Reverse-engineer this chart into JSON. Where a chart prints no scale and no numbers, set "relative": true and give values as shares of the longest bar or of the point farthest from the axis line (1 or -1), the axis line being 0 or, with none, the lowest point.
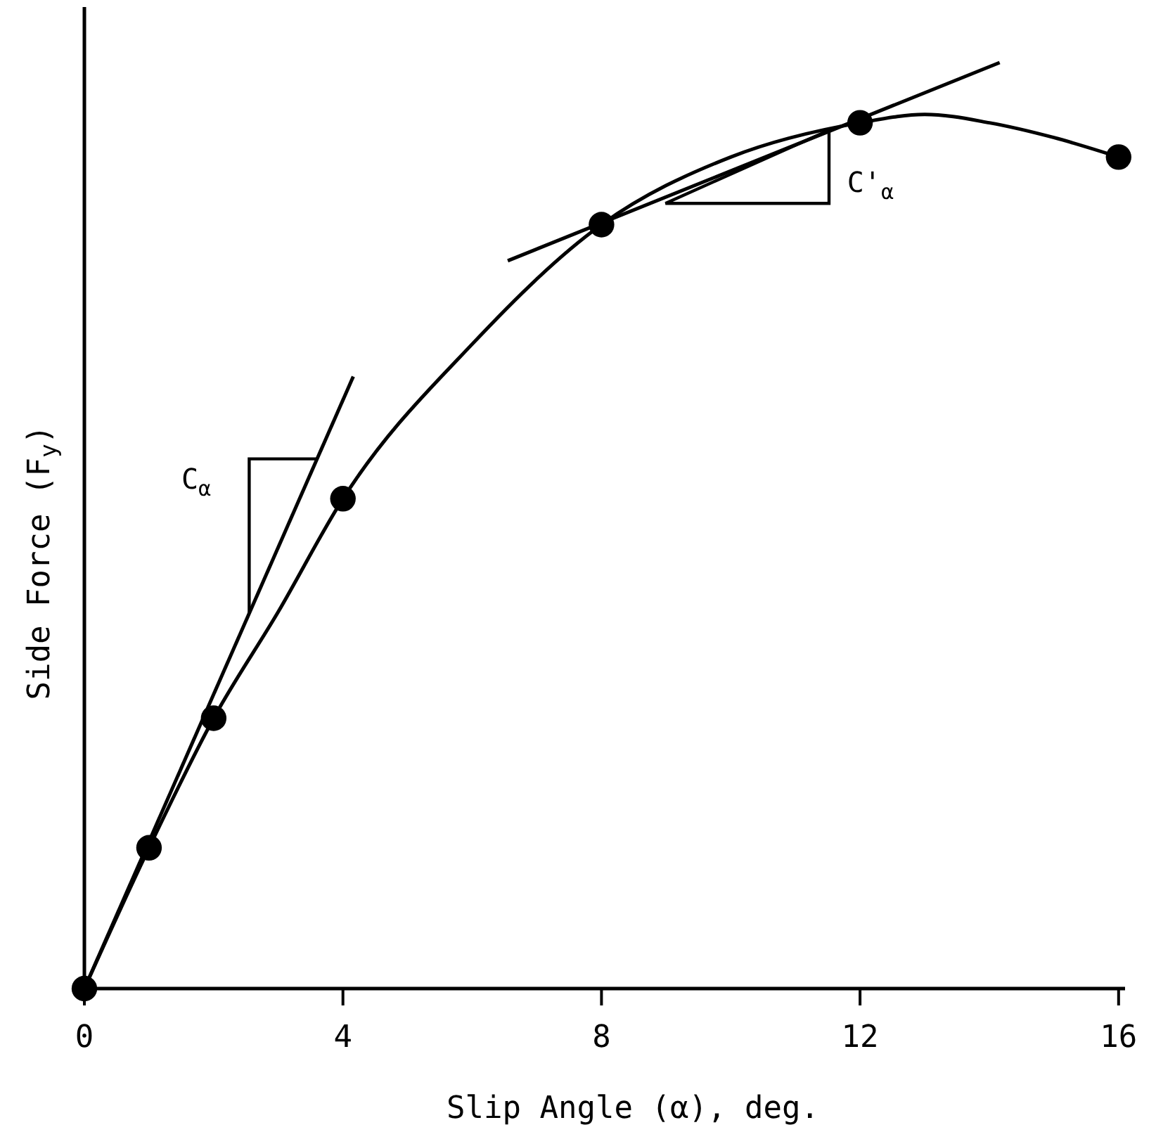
{
  "chart_data": {
    "type": "line",
    "relative": true,
    "xlabel": "Slip Angle (α), deg.",
    "ylabel": "Side Force (F$_{y}$)",
    "xlim": [
      0,
      16.1
    ],
    "xticks": [
      0,
      4,
      8,
      12,
      16
    ],
    "tick_labels": "x",
    "grid": false,
    "series": [
      {
        "color": "#000000",
        "marker": "none",
        "x": [
          0,
          1,
          2,
          3,
          4,
          6,
          8,
          10,
          12,
          13,
          14,
          15,
          16
        ],
        "values": [
          0,
          0.152,
          0.292,
          0.407,
          0.529,
          0.696,
          0.825,
          0.898,
          0.935,
          0.944,
          0.935,
          0.919,
          0.898
        ]
      },
      {
        "type": "scatter",
        "color": "#000000",
        "marker": "circle",
        "x": [
          0,
          1,
          2,
          4,
          8,
          12,
          16
        ],
        "values": [
          0,
          0.152,
          0.292,
          0.529,
          0.825,
          0.935,
          0.898
        ]
      },
      {
        "color": "#000000",
        "marker": "none",
        "x": [
          0,
          4.16
        ],
        "values": [
          0,
          0.661
        ]
      },
      {
        "color": "#000000",
        "marker": "none",
        "x": [
          6.55,
          14.16
        ],
        "values": [
          0.786,
          1
        ]
      }
    ],
    "annotations": [
      "C$_{α}$",
      "C'$_{α}$"
    ]
  }
}
